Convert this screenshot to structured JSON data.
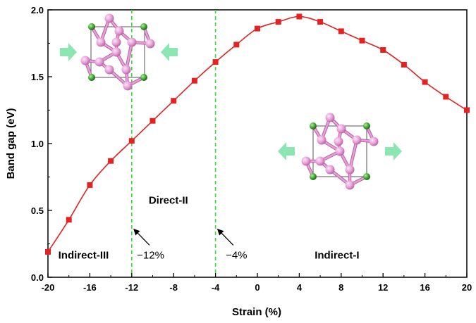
{
  "chart_data": {
    "type": "line",
    "xlabel": "Strain (%)",
    "ylabel": "Band gap (eV)",
    "xlim": [
      -20,
      20
    ],
    "ylim": [
      0.0,
      2.0
    ],
    "xticks": [
      "-20",
      "-16",
      "-12",
      "-8",
      "-4",
      "0",
      "4",
      "8",
      "12",
      "16",
      "20"
    ],
    "yticks": [
      "0.0",
      "0.5",
      "1.0",
      "1.5",
      "2.0"
    ],
    "series": [
      {
        "color": "#e32222",
        "marker": "square",
        "points": [
          [
            -20,
            0.19
          ],
          [
            -18,
            0.43
          ],
          [
            -16,
            0.69
          ],
          [
            -14,
            0.87
          ],
          [
            -12,
            1.02
          ],
          [
            -10,
            1.17
          ],
          [
            -8,
            1.32
          ],
          [
            -6,
            1.47
          ],
          [
            -4,
            1.61
          ],
          [
            -2,
            1.74
          ],
          [
            0,
            1.86
          ],
          [
            2,
            1.91
          ],
          [
            4,
            1.95
          ],
          [
            6,
            1.91
          ],
          [
            8,
            1.84
          ],
          [
            10,
            1.77
          ],
          [
            12,
            1.7
          ],
          [
            14,
            1.59
          ],
          [
            16,
            1.46
          ],
          [
            18,
            1.35
          ],
          [
            20,
            1.25
          ]
        ]
      }
    ],
    "transition_lines": [
      -12,
      -4
    ],
    "transition_line_color": "#33dd33",
    "regions": [
      {
        "label": "Indirect-III",
        "x": -16.6,
        "y": 0.14
      },
      {
        "label": "Direct-II",
        "x": -8.5,
        "y": 0.55
      },
      {
        "label": "Indirect-I",
        "x": 7.6,
        "y": 0.14
      }
    ],
    "annotations": [
      {
        "label": "−12%",
        "x": -12,
        "text_x": -10.2,
        "text_y": 0.14,
        "arrow_from": [
          -10.3,
          0.24
        ],
        "arrow_to": [
          -11.8,
          0.36
        ]
      },
      {
        "label": "−4%",
        "x": -4,
        "text_x": -2.0,
        "text_y": 0.14,
        "arrow_from": [
          -2.3,
          0.24
        ],
        "arrow_to": [
          -3.8,
          0.36
        ]
      }
    ],
    "colors": {
      "purple_atom": "#e7a1da",
      "green_atom": "#3ba02e",
      "arrow": "#7fe3a9"
    }
  }
}
